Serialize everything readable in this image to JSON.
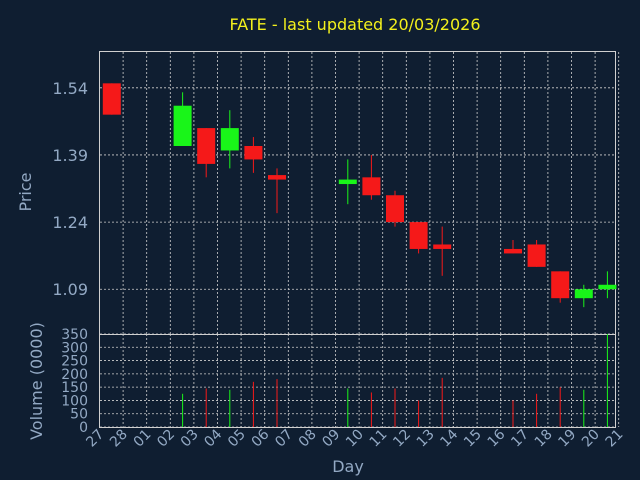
{
  "chart_data": {
    "title": "FATE - last updated 20/03/2026",
    "colors": {
      "background": "#0f1e31",
      "up": "#19f519",
      "down": "#f51919",
      "text": "#93a9c4",
      "title": "#f3f01c",
      "grid": "#d0d0d0"
    },
    "price_panel": {
      "type": "candlestick",
      "ylabel": "Price",
      "ylim": [
        0.99,
        1.62
      ],
      "yticks": [
        "1.54",
        "1.39",
        "1.24",
        "1.09"
      ],
      "grid": true
    },
    "volume_panel": {
      "type": "bar",
      "ylabel": "Volume (0000)",
      "ylim": [
        0,
        350
      ],
      "yticks": [
        "350",
        "300",
        "250",
        "200",
        "150",
        "100",
        "50",
        "0"
      ],
      "xlabel": "Day",
      "grid": true
    },
    "x_ticks": [
      "27",
      "28",
      "01",
      "02",
      "03",
      "04",
      "05",
      "06",
      "07",
      "08",
      "09",
      "10",
      "11",
      "12",
      "13",
      "14",
      "15",
      "16",
      "17",
      "18",
      "19",
      "20",
      "21"
    ],
    "candles": [
      {
        "day": "27",
        "open": 1.55,
        "high": 1.55,
        "low": 1.48,
        "close": 1.48,
        "volume": 0
      },
      {
        "day": "02",
        "open": 1.41,
        "high": 1.53,
        "low": 1.41,
        "close": 1.5,
        "volume": 125
      },
      {
        "day": "03",
        "open": 1.45,
        "high": 1.45,
        "low": 1.34,
        "close": 1.37,
        "volume": 145
      },
      {
        "day": "04",
        "open": 1.4,
        "high": 1.49,
        "low": 1.36,
        "close": 1.45,
        "volume": 140
      },
      {
        "day": "05",
        "open": 1.41,
        "high": 1.43,
        "low": 1.35,
        "close": 1.38,
        "volume": 170
      },
      {
        "day": "06",
        "open": 1.345,
        "high": 1.36,
        "low": 1.26,
        "close": 1.335,
        "volume": 180
      },
      {
        "day": "09",
        "open": 1.325,
        "high": 1.38,
        "low": 1.28,
        "close": 1.335,
        "volume": 145
      },
      {
        "day": "10",
        "open": 1.34,
        "high": 1.39,
        "low": 1.29,
        "close": 1.3,
        "volume": 130
      },
      {
        "day": "11",
        "open": 1.3,
        "high": 1.31,
        "low": 1.23,
        "close": 1.24,
        "volume": 145
      },
      {
        "day": "12",
        "open": 1.24,
        "high": 1.24,
        "low": 1.17,
        "close": 1.18,
        "volume": 100
      },
      {
        "day": "13",
        "open": 1.19,
        "high": 1.23,
        "low": 1.12,
        "close": 1.18,
        "volume": 185
      },
      {
        "day": "16",
        "open": 1.18,
        "high": 1.2,
        "low": 1.17,
        "close": 1.17,
        "volume": 100
      },
      {
        "day": "17",
        "open": 1.19,
        "high": 1.2,
        "low": 1.14,
        "close": 1.14,
        "volume": 125
      },
      {
        "day": "18",
        "open": 1.13,
        "high": 1.13,
        "low": 1.06,
        "close": 1.07,
        "volume": 150
      },
      {
        "day": "19",
        "open": 1.07,
        "high": 1.1,
        "low": 1.05,
        "close": 1.09,
        "volume": 140
      },
      {
        "day": "20",
        "open": 1.09,
        "high": 1.13,
        "low": 1.07,
        "close": 1.1,
        "volume": 350
      }
    ]
  }
}
